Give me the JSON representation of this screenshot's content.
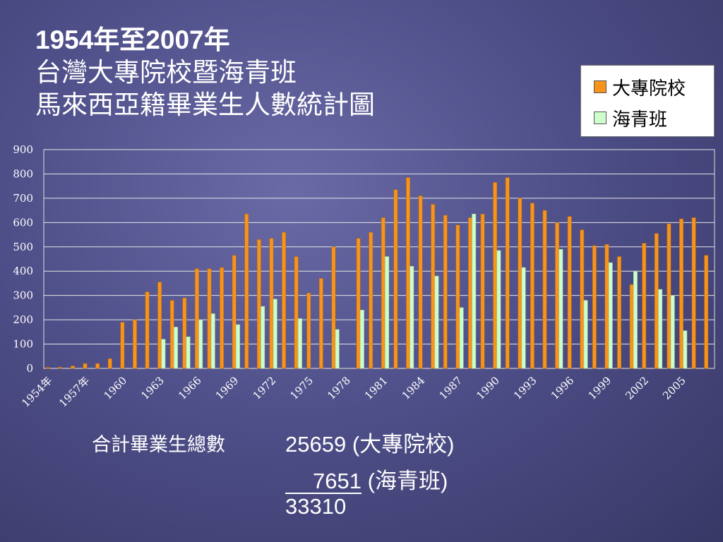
{
  "title": {
    "line1": "1954年至2007年",
    "line2": "台灣大專院校暨海青班",
    "line3": "馬來西亞籍畢業生人數統計圖"
  },
  "legend": {
    "items": [
      {
        "label": "大專院校",
        "color": "#f7941d"
      },
      {
        "label": "海青班",
        "color": "#ccffcc"
      }
    ]
  },
  "totals": {
    "label": "合計畢業生總數",
    "university_value": "25659",
    "university_label": "(大專院校)",
    "youth_value": "7651",
    "youth_label": "(海青班)",
    "sum": "33310"
  },
  "chart_data": {
    "type": "bar",
    "categories": [
      "1954",
      "1955",
      "1956",
      "1957",
      "1958",
      "1959",
      "1960",
      "1961",
      "1962",
      "1963",
      "1964",
      "1965",
      "1966",
      "1967",
      "1968",
      "1969",
      "1970",
      "1971",
      "1972",
      "1973",
      "1974",
      "1975",
      "1976",
      "1977",
      "1978",
      "1979",
      "1980",
      "1981",
      "1982",
      "1983",
      "1984",
      "1985",
      "1986",
      "1987",
      "1988",
      "1989",
      "1990",
      "1991",
      "1992",
      "1993",
      "1994",
      "1995",
      "1996",
      "1997",
      "1998",
      "1999",
      "2000",
      "2001",
      "2002",
      "2003",
      "2004",
      "2005",
      "2006",
      "2007"
    ],
    "x_tick_labels": [
      "1954年",
      "",
      "",
      "1957年",
      "",
      "",
      "1960",
      "",
      "",
      "1963",
      "",
      "",
      "1966",
      "",
      "",
      "1969",
      "",
      "",
      "1972",
      "",
      "",
      "1975",
      "",
      "",
      "1978",
      "",
      "",
      "1981",
      "",
      "",
      "1984",
      "",
      "",
      "1987",
      "",
      "",
      "1990",
      "",
      "",
      "1993",
      "",
      "",
      "1996",
      "",
      "",
      "1999",
      "",
      "",
      "2002",
      "",
      "",
      "2005",
      "",
      ""
    ],
    "series": [
      {
        "name": "大專院校",
        "values": [
          4,
          5,
          10,
          20,
          20,
          40,
          190,
          200,
          315,
          355,
          280,
          290,
          410,
          410,
          415,
          465,
          635,
          530,
          535,
          560,
          460,
          310,
          370,
          500,
          0,
          535,
          560,
          620,
          735,
          785,
          710,
          675,
          630,
          590,
          620,
          635,
          765,
          785,
          700,
          680,
          650,
          600,
          625,
          570,
          505,
          510,
          460,
          345,
          515,
          555,
          595,
          615,
          620,
          465
        ]
      },
      {
        "name": "海青班",
        "values": [
          0,
          0,
          0,
          0,
          0,
          0,
          0,
          0,
          0,
          120,
          170,
          130,
          200,
          225,
          0,
          180,
          0,
          255,
          285,
          0,
          205,
          0,
          0,
          160,
          0,
          240,
          0,
          460,
          0,
          420,
          0,
          380,
          0,
          250,
          635,
          0,
          485,
          0,
          415,
          0,
          0,
          490,
          0,
          280,
          0,
          435,
          0,
          400,
          0,
          325,
          300,
          155,
          0,
          0
        ]
      }
    ],
    "y_ticks": [
      "900",
      "800",
      "700",
      "600",
      "500",
      "400",
      "300",
      "200",
      "100",
      "0"
    ],
    "ylim": [
      0,
      900
    ],
    "grid": true,
    "legend": "top-right"
  }
}
